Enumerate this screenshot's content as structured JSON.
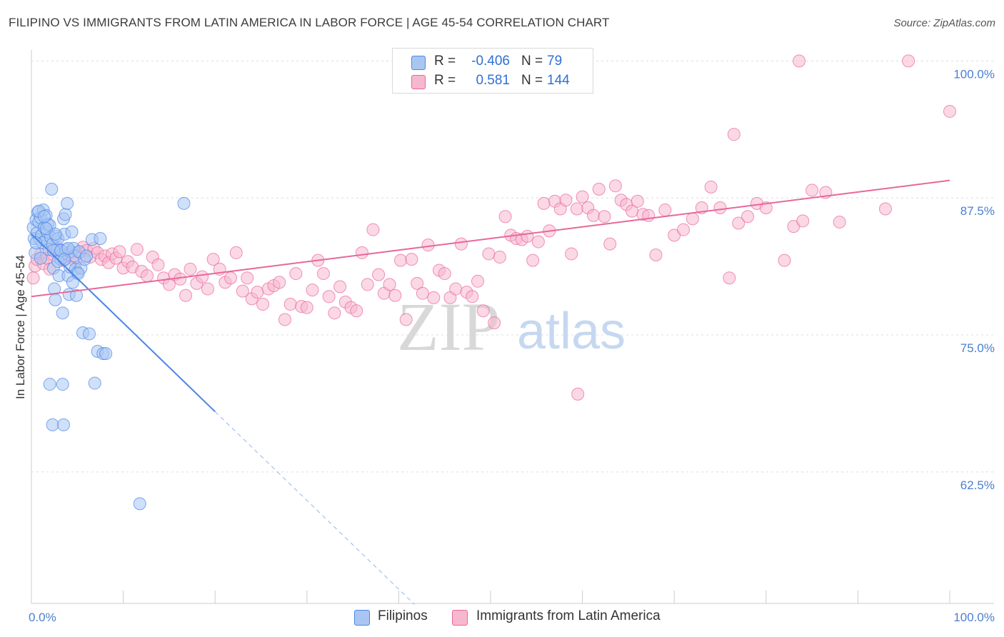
{
  "title": "FILIPINO VS IMMIGRANTS FROM LATIN AMERICA IN LABOR FORCE | AGE 45-54 CORRELATION CHART",
  "source": "Source: ZipAtlas.com",
  "watermark": {
    "zip": "ZIP",
    "atlas": "atlas"
  },
  "colors": {
    "blue": "#4a86e8",
    "blue_fill": "#a9c6f2",
    "pink": "#e8679a",
    "pink_fill": "#f7b8cf",
    "tick_text": "#4a7fd1",
    "grid": "#dddddd"
  },
  "legend": {
    "r_label": "R =",
    "n_label": "N =",
    "rows": [
      {
        "name": "Filipinos",
        "r": "-0.406",
        "n": "79",
        "color": "#a9c6f2",
        "border": "#4a86e8"
      },
      {
        "name": "Immigrants from Latin America",
        "r": "0.581",
        "n": "144",
        "color": "#f7b8cf",
        "border": "#e8679a"
      }
    ]
  },
  "chart_data": {
    "type": "scatter",
    "title": "FILIPINO VS IMMIGRANTS FROM LATIN AMERICA IN LABOR FORCE | AGE 45-54 CORRELATION CHART",
    "xlabel": "",
    "ylabel": "In Labor Force | Age 45-54",
    "xlim": [
      0,
      100
    ],
    "ylim": [
      50.5,
      101
    ],
    "x_tick_labels": [
      "0.0%",
      "100.0%"
    ],
    "y_ticks": [
      62.5,
      75.0,
      87.5,
      100.0
    ],
    "y_tick_labels": [
      "62.5%",
      "75.0%",
      "87.5%",
      "100.0%"
    ],
    "series": [
      {
        "name": "Filipinos",
        "color": "#4a86e8",
        "r": -0.406,
        "n": 79,
        "trend": {
          "x0": 0,
          "y0": 84.2,
          "x1": 20,
          "y1": 68.0,
          "dashed_to_x": 41.7
        },
        "points": [
          [
            0.2,
            84.8
          ],
          [
            0.3,
            83.8
          ],
          [
            0.4,
            82.5
          ],
          [
            0.5,
            85.5
          ],
          [
            0.6,
            84.3
          ],
          [
            0.7,
            86.2
          ],
          [
            0.8,
            85.3
          ],
          [
            0.9,
            83.7
          ],
          [
            1.0,
            85.7
          ],
          [
            1.1,
            84.1
          ],
          [
            1.2,
            83.4
          ],
          [
            1.3,
            86.4
          ],
          [
            1.4,
            84.8
          ],
          [
            1.5,
            83.6
          ],
          [
            1.6,
            85.9
          ],
          [
            1.7,
            84.4
          ],
          [
            1.8,
            85.1
          ],
          [
            1.9,
            82.8
          ],
          [
            2.0,
            85.0
          ],
          [
            2.1,
            83.9
          ],
          [
            2.2,
            88.3
          ],
          [
            2.3,
            83.3
          ],
          [
            2.4,
            81.1
          ],
          [
            2.5,
            79.2
          ],
          [
            2.6,
            78.2
          ],
          [
            2.7,
            84.0
          ],
          [
            2.8,
            82.8
          ],
          [
            2.9,
            83.8
          ],
          [
            3.0,
            80.4
          ],
          [
            3.1,
            82.5
          ],
          [
            3.2,
            81.9
          ],
          [
            3.3,
            82.3
          ],
          [
            3.4,
            77.0
          ],
          [
            3.5,
            85.6
          ],
          [
            3.6,
            84.2
          ],
          [
            3.7,
            86.0
          ],
          [
            3.8,
            82.8
          ],
          [
            3.9,
            87.0
          ],
          [
            4.0,
            80.4
          ],
          [
            4.1,
            78.7
          ],
          [
            4.2,
            81.2
          ],
          [
            4.3,
            82.6
          ],
          [
            4.4,
            84.4
          ],
          [
            4.5,
            79.8
          ],
          [
            4.6,
            82.9
          ],
          [
            4.7,
            82.2
          ],
          [
            4.8,
            81.0
          ],
          [
            4.9,
            78.6
          ],
          [
            5.0,
            80.7
          ],
          [
            5.2,
            82.6
          ],
          [
            5.4,
            81.1
          ],
          [
            5.6,
            75.2
          ],
          [
            5.8,
            81.9
          ],
          [
            6.0,
            82.2
          ],
          [
            6.3,
            75.1
          ],
          [
            6.6,
            83.7
          ],
          [
            6.9,
            70.6
          ],
          [
            7.2,
            73.5
          ],
          [
            7.5,
            83.8
          ],
          [
            7.8,
            73.3
          ],
          [
            8.1,
            73.3
          ],
          [
            2.0,
            70.5
          ],
          [
            3.4,
            70.5
          ],
          [
            2.3,
            66.8
          ],
          [
            3.5,
            66.8
          ],
          [
            11.8,
            59.6
          ],
          [
            16.6,
            87.0
          ],
          [
            0.5,
            83.4
          ],
          [
            1.0,
            82.0
          ],
          [
            1.6,
            84.7
          ],
          [
            2.4,
            82.7
          ],
          [
            2.9,
            81.7
          ],
          [
            3.2,
            82.7
          ],
          [
            3.6,
            81.9
          ],
          [
            4.0,
            82.9
          ],
          [
            0.8,
            86.3
          ],
          [
            1.4,
            85.8
          ],
          [
            2.6,
            84.2
          ],
          [
            5.1,
            80.6
          ]
        ]
      },
      {
        "name": "Immigrants from Latin America",
        "color": "#e8679a",
        "r": 0.581,
        "n": 144,
        "trend": {
          "x0": 0,
          "y0": 78.5,
          "x1": 100,
          "y1": 89.1
        },
        "points": [
          [
            0.2,
            80.2
          ],
          [
            0.4,
            81.3
          ],
          [
            0.6,
            81.9
          ],
          [
            1.0,
            82.4
          ],
          [
            1.3,
            81.5
          ],
          [
            1.7,
            82.0
          ],
          [
            2.0,
            81.0
          ],
          [
            2.4,
            82.3
          ],
          [
            2.8,
            83.0
          ],
          [
            3.1,
            82.2
          ],
          [
            3.5,
            81.8
          ],
          [
            4.0,
            82.4
          ],
          [
            4.4,
            82.1
          ],
          [
            4.8,
            81.7
          ],
          [
            5.2,
            82.5
          ],
          [
            5.6,
            83.0
          ],
          [
            6.0,
            82.7
          ],
          [
            6.4,
            82.1
          ],
          [
            6.8,
            82.9
          ],
          [
            7.2,
            82.5
          ],
          [
            7.6,
            81.9
          ],
          [
            8.0,
            82.2
          ],
          [
            8.4,
            81.6
          ],
          [
            8.8,
            82.4
          ],
          [
            9.2,
            82.0
          ],
          [
            9.6,
            82.6
          ],
          [
            10.0,
            81.1
          ],
          [
            10.5,
            81.7
          ],
          [
            11.0,
            81.2
          ],
          [
            11.5,
            82.8
          ],
          [
            12.0,
            80.8
          ],
          [
            12.6,
            80.4
          ],
          [
            13.2,
            82.1
          ],
          [
            13.8,
            81.4
          ],
          [
            14.4,
            80.2
          ],
          [
            15.0,
            79.6
          ],
          [
            15.6,
            80.5
          ],
          [
            16.2,
            80.1
          ],
          [
            16.8,
            78.6
          ],
          [
            17.3,
            81.0
          ],
          [
            18.0,
            79.7
          ],
          [
            18.6,
            80.3
          ],
          [
            19.2,
            79.2
          ],
          [
            19.8,
            81.9
          ],
          [
            20.5,
            81.0
          ],
          [
            21.1,
            79.8
          ],
          [
            21.7,
            80.2
          ],
          [
            22.3,
            82.5
          ],
          [
            23.0,
            79.0
          ],
          [
            23.5,
            80.2
          ],
          [
            24.0,
            78.3
          ],
          [
            24.6,
            78.9
          ],
          [
            25.2,
            77.8
          ],
          [
            25.8,
            79.2
          ],
          [
            26.4,
            79.5
          ],
          [
            27.0,
            79.8
          ],
          [
            27.6,
            76.4
          ],
          [
            28.2,
            77.8
          ],
          [
            28.8,
            80.6
          ],
          [
            29.4,
            77.6
          ],
          [
            30.0,
            77.5
          ],
          [
            30.6,
            79.1
          ],
          [
            31.2,
            81.8
          ],
          [
            31.8,
            80.6
          ],
          [
            32.4,
            78.5
          ],
          [
            33.0,
            77.0
          ],
          [
            33.6,
            79.4
          ],
          [
            34.2,
            78.0
          ],
          [
            34.8,
            77.5
          ],
          [
            35.4,
            77.2
          ],
          [
            36.0,
            82.5
          ],
          [
            36.6,
            79.6
          ],
          [
            37.2,
            84.6
          ],
          [
            37.8,
            80.5
          ],
          [
            38.4,
            78.8
          ],
          [
            39.0,
            79.6
          ],
          [
            39.6,
            78.6
          ],
          [
            40.2,
            81.8
          ],
          [
            40.8,
            76.4
          ],
          [
            41.4,
            81.9
          ],
          [
            42.0,
            79.7
          ],
          [
            42.6,
            78.8
          ],
          [
            43.2,
            83.2
          ],
          [
            43.8,
            78.4
          ],
          [
            44.4,
            80.9
          ],
          [
            45.0,
            80.6
          ],
          [
            45.6,
            78.4
          ],
          [
            46.2,
            79.2
          ],
          [
            46.8,
            83.3
          ],
          [
            47.4,
            78.9
          ],
          [
            48.0,
            78.5
          ],
          [
            48.6,
            79.9
          ],
          [
            49.2,
            77.2
          ],
          [
            49.8,
            82.4
          ],
          [
            50.4,
            76.1
          ],
          [
            51.0,
            82.1
          ],
          [
            51.6,
            85.8
          ],
          [
            52.2,
            84.1
          ],
          [
            52.8,
            83.8
          ],
          [
            53.4,
            83.7
          ],
          [
            54.0,
            84.0
          ],
          [
            54.6,
            81.8
          ],
          [
            55.2,
            83.5
          ],
          [
            55.8,
            87.0
          ],
          [
            56.4,
            84.5
          ],
          [
            57.0,
            87.2
          ],
          [
            57.6,
            86.5
          ],
          [
            58.2,
            87.3
          ],
          [
            58.8,
            82.4
          ],
          [
            59.4,
            86.5
          ],
          [
            60.0,
            87.6
          ],
          [
            60.6,
            86.6
          ],
          [
            61.2,
            85.9
          ],
          [
            61.8,
            88.3
          ],
          [
            62.4,
            85.8
          ],
          [
            63.0,
            83.3
          ],
          [
            63.6,
            88.6
          ],
          [
            64.2,
            87.3
          ],
          [
            64.8,
            86.9
          ],
          [
            65.4,
            86.3
          ],
          [
            66.0,
            87.2
          ],
          [
            66.6,
            86.0
          ],
          [
            67.2,
            85.9
          ],
          [
            68.0,
            82.3
          ],
          [
            69.0,
            86.4
          ],
          [
            70.0,
            84.1
          ],
          [
            71.0,
            84.6
          ],
          [
            72.0,
            85.6
          ],
          [
            73.0,
            86.6
          ],
          [
            74.0,
            88.5
          ],
          [
            75.0,
            86.6
          ],
          [
            76.0,
            80.2
          ],
          [
            77.0,
            85.2
          ],
          [
            78.0,
            85.8
          ],
          [
            79.0,
            87.0
          ],
          [
            80.0,
            86.6
          ],
          [
            82.0,
            81.8
          ],
          [
            83.0,
            84.9
          ],
          [
            84.0,
            85.4
          ],
          [
            85.0,
            88.2
          ],
          [
            88.0,
            85.3
          ],
          [
            76.5,
            93.3
          ],
          [
            83.6,
            100.0
          ],
          [
            95.5,
            100.0
          ],
          [
            100.0,
            95.4
          ],
          [
            59.5,
            69.6
          ],
          [
            86.5,
            88.0
          ],
          [
            93.0,
            86.5
          ]
        ]
      }
    ]
  }
}
